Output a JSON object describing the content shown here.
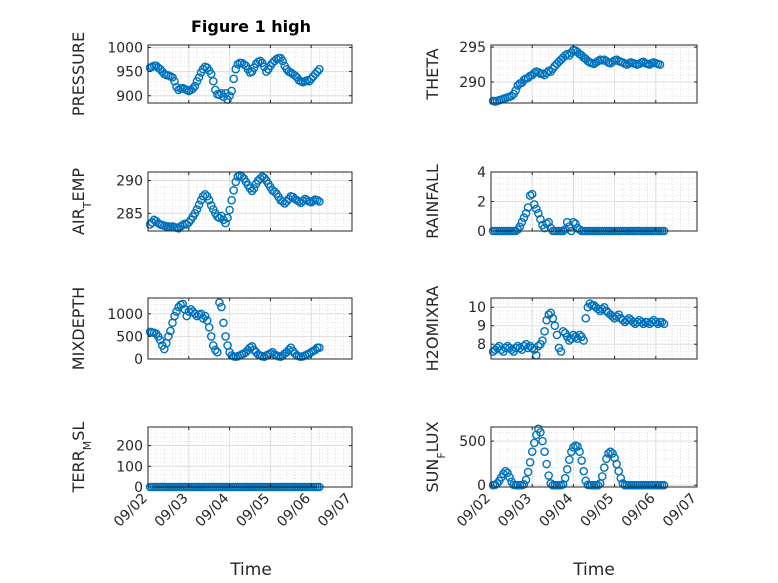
{
  "figure": {
    "title": "Figure 1 high",
    "xlabel": "Time",
    "x_tick_labels": [
      "09/02",
      "09/03",
      "09/04",
      "09/05",
      "09/06",
      "09/07"
    ],
    "marker_color": "#0072BD"
  },
  "chart_data": [
    {
      "type": "scatter",
      "ylabel": "PRESSURE",
      "ylim": [
        885,
        1005
      ],
      "yticks": [
        900,
        950,
        1000
      ],
      "grid": true,
      "x": [
        0.05,
        0.1,
        0.15,
        0.2,
        0.25,
        0.3,
        0.35,
        0.4,
        0.45,
        0.5,
        0.55,
        0.6,
        0.65,
        0.7,
        0.75,
        0.8,
        0.85,
        0.9,
        0.95,
        1.0,
        1.05,
        1.1,
        1.15,
        1.2,
        1.25,
        1.3,
        1.35,
        1.4,
        1.45,
        1.5,
        1.55,
        1.6,
        1.65,
        1.7,
        1.75,
        1.8,
        1.85,
        1.9,
        1.95,
        2.0,
        2.05,
        2.1,
        2.15,
        2.2,
        2.25,
        2.3,
        2.35,
        2.4,
        2.45,
        2.5,
        2.55,
        2.6,
        2.65,
        2.7,
        2.75,
        2.8,
        2.85,
        2.9,
        2.95,
        3.0,
        3.05,
        3.1,
        3.15,
        3.2,
        3.25,
        3.3,
        3.35,
        3.4,
        3.45,
        3.5,
        3.55,
        3.6,
        3.65,
        3.7,
        3.75,
        3.8,
        3.85,
        3.9,
        3.95,
        4.0,
        4.05,
        4.1,
        4.15,
        4.2
      ],
      "y": [
        958,
        960,
        962,
        962,
        958,
        955,
        950,
        945,
        943,
        942,
        940,
        938,
        930,
        918,
        912,
        915,
        916,
        914,
        912,
        910,
        912,
        915,
        920,
        930,
        938,
        948,
        955,
        960,
        958,
        952,
        945,
        930,
        912,
        903,
        902,
        905,
        898,
        905,
        892,
        900,
        910,
        935,
        955,
        965,
        968,
        968,
        965,
        962,
        955,
        948,
        950,
        958,
        966,
        970,
        972,
        968,
        960,
        950,
        955,
        962,
        968,
        972,
        976,
        978,
        978,
        972,
        962,
        955,
        950,
        948,
        945,
        942,
        938,
        932,
        930,
        928,
        930,
        932,
        930,
        935,
        940,
        945,
        950,
        955
      ]
    },
    {
      "type": "scatter",
      "ylabel": "THETA",
      "ylim": [
        287,
        295.3
      ],
      "yticks": [
        290,
        295
      ],
      "grid": true,
      "x": [
        0.05,
        0.1,
        0.15,
        0.2,
        0.25,
        0.3,
        0.35,
        0.4,
        0.45,
        0.5,
        0.55,
        0.6,
        0.65,
        0.7,
        0.75,
        0.8,
        0.85,
        0.9,
        0.95,
        1.0,
        1.05,
        1.1,
        1.15,
        1.2,
        1.25,
        1.3,
        1.35,
        1.4,
        1.45,
        1.5,
        1.55,
        1.6,
        1.65,
        1.7,
        1.75,
        1.8,
        1.85,
        1.9,
        1.95,
        2.0,
        2.05,
        2.1,
        2.15,
        2.2,
        2.25,
        2.3,
        2.35,
        2.4,
        2.45,
        2.5,
        2.55,
        2.6,
        2.65,
        2.7,
        2.75,
        2.8,
        2.85,
        2.9,
        2.95,
        3.0,
        3.05,
        3.1,
        3.15,
        3.2,
        3.25,
        3.3,
        3.35,
        3.4,
        3.45,
        3.5,
        3.55,
        3.6,
        3.65,
        3.7,
        3.75,
        3.8,
        3.85,
        3.9,
        3.95,
        4.0,
        4.05,
        4.1
      ],
      "y": [
        287.3,
        287.2,
        287.3,
        287.4,
        287.5,
        287.6,
        287.7,
        287.8,
        287.9,
        288.0,
        288.3,
        288.8,
        289.5,
        289.8,
        289.9,
        290.3,
        290.5,
        290.6,
        290.9,
        291.0,
        291.3,
        291.5,
        291.4,
        291.2,
        291.2,
        291.0,
        291.3,
        291.6,
        291.5,
        291.9,
        292.3,
        292.6,
        292.9,
        293.2,
        293.5,
        293.8,
        294.0,
        293.8,
        294.2,
        294.6,
        294.5,
        294.3,
        294.0,
        293.8,
        293.5,
        293.3,
        293.0,
        292.8,
        292.7,
        292.6,
        292.8,
        293.0,
        293.2,
        293.1,
        293.2,
        293.0,
        292.8,
        292.7,
        292.9,
        293.1,
        293.2,
        293.0,
        292.9,
        292.8,
        292.6,
        292.5,
        292.7,
        292.8,
        292.7,
        292.6,
        292.5,
        292.6,
        292.8,
        292.9,
        292.7,
        292.6,
        292.5,
        292.7,
        292.8,
        292.7,
        292.6,
        292.5
      ]
    },
    {
      "type": "scatter",
      "ylabel": "AIR_TEMP",
      "ylim": [
        282.3,
        291.3
      ],
      "yticks": [
        285,
        290
      ],
      "grid": true,
      "x": [
        0.05,
        0.1,
        0.15,
        0.2,
        0.25,
        0.3,
        0.35,
        0.4,
        0.45,
        0.5,
        0.55,
        0.6,
        0.65,
        0.7,
        0.75,
        0.8,
        0.85,
        0.9,
        0.95,
        1.0,
        1.05,
        1.1,
        1.15,
        1.2,
        1.25,
        1.3,
        1.35,
        1.4,
        1.45,
        1.5,
        1.55,
        1.6,
        1.65,
        1.7,
        1.75,
        1.8,
        1.85,
        1.9,
        1.95,
        2.0,
        2.05,
        2.1,
        2.15,
        2.2,
        2.25,
        2.3,
        2.35,
        2.4,
        2.45,
        2.5,
        2.55,
        2.6,
        2.65,
        2.7,
        2.75,
        2.8,
        2.85,
        2.9,
        2.95,
        3.0,
        3.05,
        3.1,
        3.15,
        3.2,
        3.25,
        3.3,
        3.35,
        3.4,
        3.45,
        3.5,
        3.55,
        3.6,
        3.65,
        3.7,
        3.75,
        3.8,
        3.85,
        3.9,
        3.95,
        4.0,
        4.05,
        4.1,
        4.15,
        4.2
      ],
      "y": [
        283.3,
        283.6,
        284.0,
        283.8,
        283.5,
        283.3,
        283.2,
        283.1,
        283.0,
        283.0,
        282.9,
        283.0,
        282.9,
        282.8,
        282.7,
        283.0,
        283.2,
        283.4,
        283.3,
        283.6,
        284.0,
        284.5,
        285.0,
        285.6,
        286.3,
        287.0,
        287.6,
        287.9,
        287.6,
        287.0,
        286.2,
        285.6,
        285.0,
        284.5,
        284.3,
        284.6,
        284.0,
        283.5,
        284.3,
        285.5,
        287.0,
        288.5,
        289.8,
        290.6,
        290.8,
        290.6,
        290.3,
        289.8,
        289.3,
        288.8,
        288.4,
        288.8,
        289.5,
        290.0,
        290.3,
        290.6,
        290.4,
        290.0,
        289.5,
        289.0,
        288.5,
        288.3,
        288.0,
        287.5,
        287.0,
        286.8,
        286.5,
        286.8,
        287.2,
        287.6,
        287.5,
        287.2,
        287.0,
        286.8,
        286.6,
        286.9,
        287.2,
        287.0,
        286.8,
        286.7,
        286.9,
        287.1,
        287.0,
        286.8
      ]
    },
    {
      "type": "scatter",
      "ylabel": "RAINFALL",
      "ylim": [
        0,
        4
      ],
      "yticks": [
        0,
        2,
        4
      ],
      "grid": true,
      "x": [
        0.05,
        0.1,
        0.15,
        0.2,
        0.25,
        0.3,
        0.35,
        0.4,
        0.45,
        0.5,
        0.55,
        0.6,
        0.65,
        0.7,
        0.75,
        0.8,
        0.85,
        0.9,
        0.95,
        1.0,
        1.05,
        1.1,
        1.15,
        1.2,
        1.25,
        1.3,
        1.35,
        1.4,
        1.45,
        1.5,
        1.55,
        1.6,
        1.65,
        1.7,
        1.75,
        1.8,
        1.85,
        1.9,
        1.95,
        2.0,
        2.05,
        2.1,
        2.15,
        2.2,
        2.25,
        2.3,
        2.35,
        2.4,
        2.45,
        2.5,
        2.55,
        2.6,
        2.65,
        2.7,
        2.75,
        2.8,
        2.85,
        2.9,
        2.95,
        3.0,
        3.05,
        3.1,
        3.15,
        3.2,
        3.25,
        3.3,
        3.35,
        3.4,
        3.45,
        3.5,
        3.55,
        3.6,
        3.65,
        3.7,
        3.75,
        3.8,
        3.85,
        3.9,
        3.95,
        4.0,
        4.05,
        4.1,
        4.15,
        4.2
      ],
      "y": [
        0,
        0,
        0,
        0,
        0,
        0,
        0,
        0,
        0,
        0,
        0,
        0,
        0.1,
        0.3,
        0.6,
        0.9,
        1.2,
        1.6,
        2.4,
        2.5,
        1.8,
        1.5,
        1.2,
        0.8,
        0.4,
        0.2,
        0.5,
        0.6,
        0.2,
        0,
        0,
        0,
        0,
        0,
        0,
        0.1,
        0.6,
        0.3,
        0,
        0.6,
        0.5,
        0.2,
        0.1,
        0,
        0,
        0,
        0,
        0,
        0,
        0,
        0,
        0,
        0,
        0,
        0,
        0,
        0,
        0,
        0,
        0,
        0,
        0,
        0,
        0,
        0,
        0,
        0,
        0,
        0,
        0,
        0,
        0,
        0,
        0,
        0,
        0,
        0,
        0,
        0,
        0,
        0,
        0,
        0,
        0
      ]
    },
    {
      "type": "scatter",
      "ylabel": "MIXDEPTH",
      "ylim": [
        0,
        1350
      ],
      "yticks": [
        0,
        500,
        1000
      ],
      "grid": true,
      "x": [
        0.05,
        0.1,
        0.15,
        0.2,
        0.25,
        0.3,
        0.35,
        0.4,
        0.45,
        0.5,
        0.55,
        0.6,
        0.65,
        0.7,
        0.75,
        0.8,
        0.85,
        0.9,
        0.95,
        1.0,
        1.05,
        1.1,
        1.15,
        1.2,
        1.25,
        1.3,
        1.35,
        1.4,
        1.45,
        1.5,
        1.55,
        1.6,
        1.65,
        1.7,
        1.75,
        1.8,
        1.85,
        1.9,
        1.95,
        2.0,
        2.05,
        2.1,
        2.15,
        2.2,
        2.25,
        2.3,
        2.35,
        2.4,
        2.45,
        2.5,
        2.55,
        2.6,
        2.65,
        2.7,
        2.75,
        2.8,
        2.85,
        2.9,
        2.95,
        3.0,
        3.05,
        3.1,
        3.15,
        3.2,
        3.25,
        3.3,
        3.35,
        3.4,
        3.45,
        3.5,
        3.55,
        3.6,
        3.65,
        3.7,
        3.75,
        3.8,
        3.85,
        3.9,
        3.95,
        4.0,
        4.05,
        4.1,
        4.15,
        4.2
      ],
      "y": [
        600,
        590,
        580,
        560,
        500,
        420,
        300,
        220,
        350,
        500,
        620,
        800,
        950,
        1050,
        1150,
        1200,
        1220,
        1100,
        950,
        1050,
        1100,
        1050,
        1000,
        950,
        980,
        1000,
        900,
        950,
        850,
        700,
        500,
        300,
        200,
        150,
        1250,
        1150,
        800,
        500,
        300,
        150,
        80,
        60,
        50,
        60,
        80,
        100,
        120,
        150,
        200,
        250,
        280,
        200,
        150,
        100,
        80,
        60,
        50,
        80,
        100,
        120,
        150,
        100,
        80,
        60,
        50,
        80,
        120,
        150,
        200,
        250,
        180,
        120,
        80,
        60,
        50,
        60,
        80,
        100,
        120,
        150,
        180,
        200,
        250,
        250
      ]
    },
    {
      "type": "scatter",
      "ylabel": "H2OMIXRA",
      "ylim": [
        7.2,
        10.5
      ],
      "yticks": [
        8,
        9,
        10
      ],
      "grid": true,
      "x": [
        0.05,
        0.1,
        0.15,
        0.2,
        0.25,
        0.3,
        0.35,
        0.4,
        0.45,
        0.5,
        0.55,
        0.6,
        0.65,
        0.7,
        0.75,
        0.8,
        0.85,
        0.9,
        0.95,
        1.0,
        1.05,
        1.1,
        1.15,
        1.2,
        1.25,
        1.3,
        1.35,
        1.4,
        1.45,
        1.5,
        1.55,
        1.6,
        1.65,
        1.7,
        1.75,
        1.8,
        1.85,
        1.9,
        1.95,
        2.0,
        2.05,
        2.1,
        2.15,
        2.2,
        2.25,
        2.3,
        2.35,
        2.4,
        2.45,
        2.5,
        2.55,
        2.6,
        2.65,
        2.7,
        2.75,
        2.8,
        2.85,
        2.9,
        2.95,
        3.0,
        3.05,
        3.1,
        3.15,
        3.2,
        3.25,
        3.3,
        3.35,
        3.4,
        3.45,
        3.5,
        3.55,
        3.6,
        3.65,
        3.7,
        3.75,
        3.8,
        3.85,
        3.9,
        3.95,
        4.0,
        4.05,
        4.1,
        4.15,
        4.2
      ],
      "y": [
        7.6,
        7.7,
        7.8,
        7.9,
        7.7,
        7.6,
        7.8,
        7.9,
        7.8,
        7.7,
        7.6,
        7.8,
        7.9,
        7.8,
        7.7,
        7.9,
        8.0,
        7.8,
        7.9,
        7.8,
        7.7,
        7.4,
        7.9,
        8.0,
        8.2,
        8.7,
        9.3,
        9.6,
        9.7,
        9.4,
        9.0,
        8.5,
        7.8,
        7.6,
        8.7,
        8.6,
        8.4,
        8.2,
        8.3,
        8.5,
        8.4,
        8.3,
        8.5,
        8.4,
        8.2,
        9.4,
        10.0,
        10.2,
        10.1,
        10.1,
        10.0,
        9.9,
        9.8,
        9.9,
        10.0,
        9.8,
        9.7,
        9.6,
        9.5,
        9.4,
        9.5,
        9.6,
        9.4,
        9.3,
        9.2,
        9.3,
        9.4,
        9.3,
        9.2,
        9.1,
        9.2,
        9.3,
        9.2,
        9.1,
        9.2,
        9.2,
        9.1,
        9.2,
        9.3,
        9.2,
        9.1,
        9.2,
        9.2,
        9.1
      ]
    },
    {
      "type": "scatter",
      "ylabel": "TERR_MSL",
      "ylim": [
        0,
        290
      ],
      "yticks": [
        0,
        100,
        200
      ],
      "grid": true,
      "x": [
        0.05,
        0.1,
        0.15,
        0.2,
        0.25,
        0.3,
        0.35,
        0.4,
        0.45,
        0.5,
        0.55,
        0.6,
        0.65,
        0.7,
        0.75,
        0.8,
        0.85,
        0.9,
        0.95,
        1.0,
        1.05,
        1.1,
        1.15,
        1.2,
        1.25,
        1.3,
        1.35,
        1.4,
        1.45,
        1.5,
        1.55,
        1.6,
        1.65,
        1.7,
        1.75,
        1.8,
        1.85,
        1.9,
        1.95,
        2.0,
        2.05,
        2.1,
        2.15,
        2.2,
        2.25,
        2.3,
        2.35,
        2.4,
        2.45,
        2.5,
        2.55,
        2.6,
        2.65,
        2.7,
        2.75,
        2.8,
        2.85,
        2.9,
        2.95,
        3.0,
        3.05,
        3.1,
        3.15,
        3.2,
        3.25,
        3.3,
        3.35,
        3.4,
        3.45,
        3.5,
        3.55,
        3.6,
        3.65,
        3.7,
        3.75,
        3.8,
        3.85,
        3.9,
        3.95,
        4.0,
        4.05,
        4.1,
        4.15,
        4.2
      ],
      "y": [
        0,
        0,
        0,
        0,
        0,
        0,
        0,
        0,
        0,
        0,
        0,
        0,
        0,
        0,
        0,
        0,
        0,
        0,
        0,
        0,
        0,
        0,
        0,
        0,
        0,
        0,
        0,
        0,
        0,
        0,
        0,
        0,
        0,
        0,
        0,
        0,
        0,
        0,
        0,
        0,
        0,
        0,
        0,
        0,
        0,
        0,
        0,
        0,
        0,
        0,
        0,
        0,
        0,
        0,
        0,
        0,
        0,
        0,
        0,
        0,
        0,
        0,
        0,
        0,
        0,
        0,
        0,
        0,
        0,
        0,
        0,
        0,
        0,
        0,
        0,
        0,
        0,
        0,
        0,
        0,
        0,
        0,
        0,
        0
      ]
    },
    {
      "type": "scatter",
      "ylabel": "SUN_FLUX",
      "ylim": [
        -20,
        660
      ],
      "yticks": [
        0,
        500
      ],
      "grid": true,
      "x": [
        0.05,
        0.1,
        0.15,
        0.2,
        0.25,
        0.3,
        0.35,
        0.4,
        0.45,
        0.5,
        0.55,
        0.6,
        0.65,
        0.7,
        0.75,
        0.8,
        0.85,
        0.9,
        0.95,
        1.0,
        1.05,
        1.1,
        1.15,
        1.2,
        1.25,
        1.3,
        1.35,
        1.4,
        1.45,
        1.5,
        1.55,
        1.6,
        1.65,
        1.7,
        1.75,
        1.8,
        1.85,
        1.9,
        1.95,
        2.0,
        2.05,
        2.1,
        2.15,
        2.2,
        2.25,
        2.3,
        2.35,
        2.4,
        2.45,
        2.5,
        2.55,
        2.6,
        2.65,
        2.7,
        2.75,
        2.8,
        2.85,
        2.9,
        2.95,
        3.0,
        3.05,
        3.1,
        3.15,
        3.2,
        3.25,
        3.3,
        3.35,
        3.4,
        3.45,
        3.5,
        3.55,
        3.6,
        3.65,
        3.7,
        3.75,
        3.8,
        3.85,
        3.9,
        3.95,
        4.0,
        4.05,
        4.1,
        4.15,
        4.2
      ],
      "y": [
        0,
        5,
        20,
        50,
        90,
        130,
        160,
        140,
        90,
        40,
        5,
        0,
        0,
        0,
        0,
        10,
        60,
        150,
        260,
        380,
        480,
        570,
        640,
        600,
        500,
        380,
        240,
        110,
        20,
        0,
        0,
        0,
        0,
        0,
        10,
        80,
        180,
        290,
        380,
        430,
        450,
        440,
        380,
        280,
        160,
        50,
        5,
        0,
        0,
        0,
        0,
        0,
        20,
        100,
        200,
        300,
        360,
        380,
        360,
        310,
        240,
        160,
        80,
        20,
        0,
        0,
        0,
        0,
        0,
        0,
        0,
        0,
        0,
        0,
        0,
        0,
        0,
        0,
        0,
        0,
        0,
        0,
        0,
        0
      ]
    }
  ]
}
